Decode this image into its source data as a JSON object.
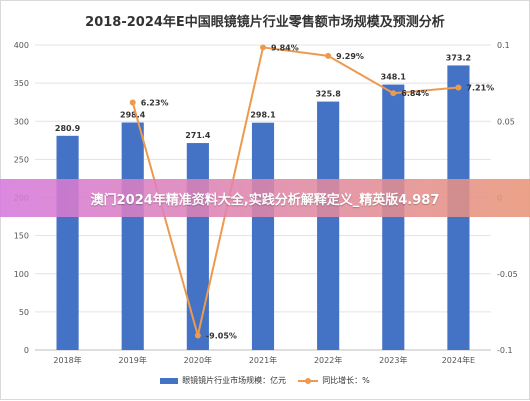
{
  "chart_data": {
    "type": "bar",
    "title": "2018-2024年E中国眼镜镜片行业零售额市场规模及预测分析",
    "categories": [
      "2018年",
      "2019年",
      "2020年",
      "2021年",
      "2022年",
      "2023年",
      "2024年E"
    ],
    "series": [
      {
        "name": "眼镜镜片行业市场规模：亿元",
        "type": "bar",
        "axis": "left",
        "values": [
          280.9,
          298.4,
          271.4,
          298.1,
          325.8,
          348.1,
          373.2
        ],
        "labels": [
          "280.9",
          "298.4",
          "271.4",
          "298.1",
          "325.8",
          "348.1",
          "373.2"
        ]
      },
      {
        "name": "同比增长：%",
        "type": "line",
        "axis": "right",
        "values": [
          null,
          0.0623,
          -0.0905,
          0.0984,
          0.0929,
          0.0684,
          0.0721
        ],
        "labels": [
          "",
          "6.23%",
          "-9.05%",
          "9.84%",
          "9.29%",
          "6.84%",
          "7.21%"
        ]
      }
    ],
    "yleft": {
      "lim": [
        0,
        400
      ],
      "ticks": [
        "0",
        "50",
        "100",
        "150",
        "200",
        "250",
        "300",
        "350",
        "400"
      ]
    },
    "yright": {
      "lim": [
        -0.1,
        0.1
      ],
      "ticks": [
        "-0.1",
        "-0.05",
        "0",
        "0.05",
        "0.1"
      ]
    },
    "grid": true,
    "legend": "bottom",
    "colors": {
      "bar": "#4472c4",
      "line": "#ed9a4f",
      "grid": "#e3e3e3",
      "text": "#555555"
    }
  },
  "overlay": {
    "text": "澳门2024年精准资料大全,实践分析解释定义_精英版4.987"
  }
}
